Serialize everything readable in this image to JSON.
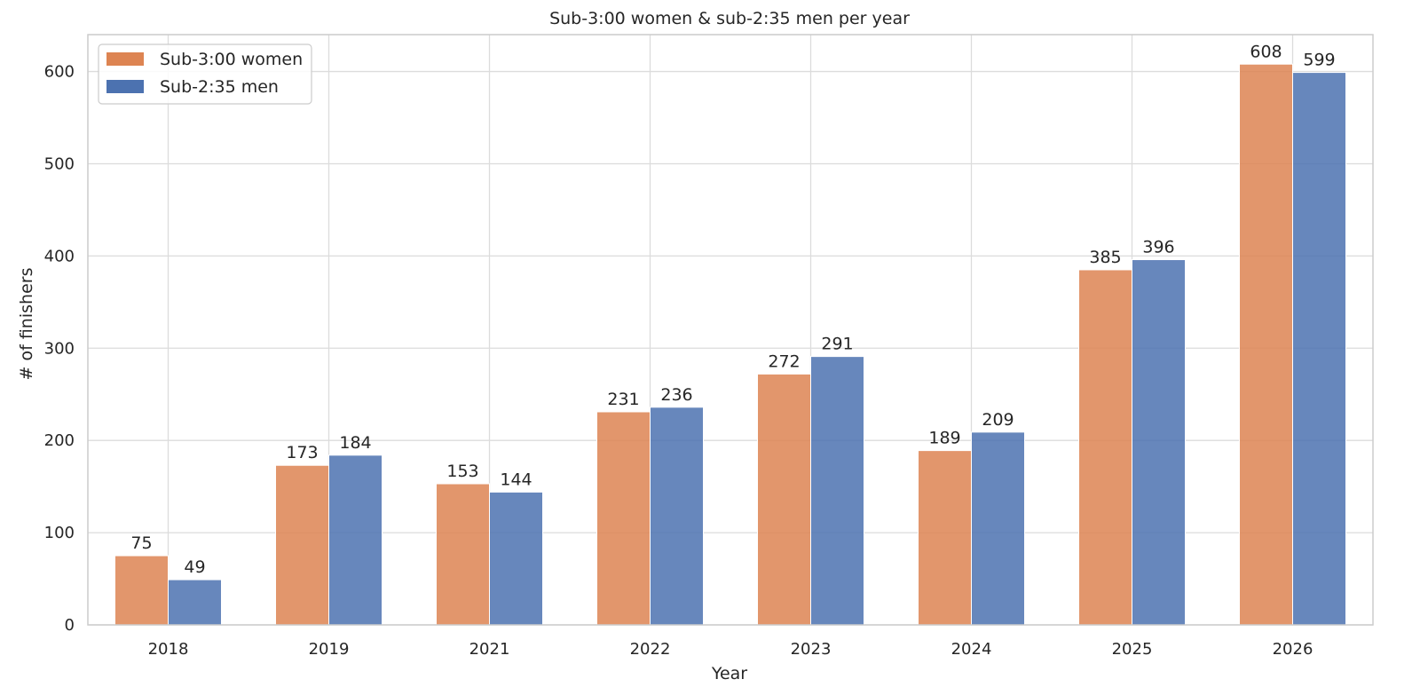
{
  "chart_data": {
    "type": "bar",
    "title": "Sub-3:00 women & sub-2:35 men per year",
    "xlabel": "Year",
    "ylabel": "# of finishers",
    "categories": [
      "2018",
      "2019",
      "2021",
      "2022",
      "2023",
      "2024",
      "2025",
      "2026"
    ],
    "series": [
      {
        "name": "Sub-3:00 women",
        "color": "#dd8452",
        "values": [
          75,
          173,
          153,
          231,
          272,
          189,
          385,
          608
        ]
      },
      {
        "name": "Sub-2:35 men",
        "color": "#4c72b0",
        "values": [
          49,
          184,
          144,
          236,
          291,
          209,
          396,
          599
        ]
      }
    ],
    "ylim": [
      0,
      640
    ],
    "yticks": [
      0,
      100,
      200,
      300,
      400,
      500,
      600
    ],
    "grid": true,
    "legend_position": "top-left",
    "data_labels": true
  }
}
